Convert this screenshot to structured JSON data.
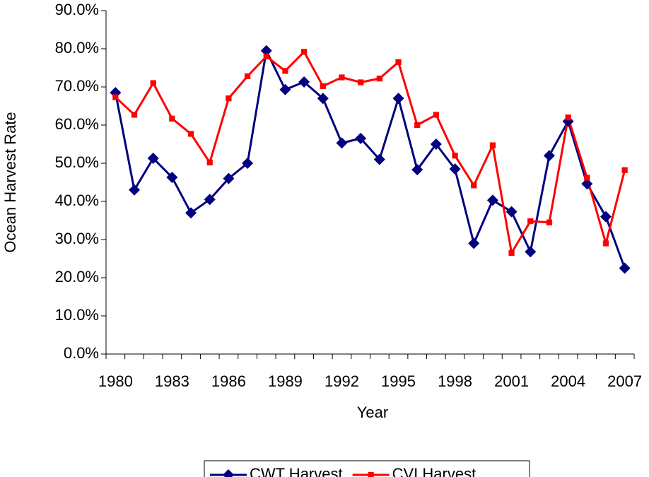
{
  "chart_data": {
    "type": "line",
    "x_label": "Year",
    "y_label": "Ocean Harvest Rate",
    "categories": [
      1980,
      null,
      null,
      1983,
      null,
      null,
      1986,
      null,
      null,
      1989,
      null,
      null,
      1992,
      null,
      null,
      1995,
      null,
      null,
      1998,
      null,
      null,
      2001,
      null,
      null,
      2004,
      null,
      null,
      2007
    ],
    "series": [
      {
        "name": "CWT Harvest",
        "color": "#000080",
        "marker": "diamond",
        "values": [
          68.5,
          43,
          51.3,
          46.3,
          37,
          40.5,
          46,
          50,
          79.5,
          69.3,
          71.3,
          67,
          55.3,
          56.5,
          51,
          67,
          48.3,
          55,
          48.5,
          29,
          40.3,
          37.3,
          26.8,
          52,
          61,
          44.6,
          36,
          22.5
        ]
      },
      {
        "name": "CVI Harvest",
        "color": "#ff0000",
        "marker": "square",
        "values": [
          67.3,
          62.7,
          71,
          61.7,
          57.7,
          50.2,
          67,
          72.8,
          78,
          74.2,
          79.2,
          70.2,
          72.5,
          71.2,
          72.2,
          76.5,
          60,
          62.7,
          52,
          44.2,
          54.7,
          26.5,
          34.8,
          34.5,
          62,
          46.2,
          29,
          48.2
        ]
      }
    ],
    "ylim": [
      0,
      90
    ],
    "yticks": [
      {
        "value": 0,
        "label": "0.0%"
      },
      {
        "value": 10,
        "label": "10.0%"
      },
      {
        "value": 20,
        "label": "20.0%"
      },
      {
        "value": 30,
        "label": "30.0%"
      },
      {
        "value": 40,
        "label": "40.0%"
      },
      {
        "value": 50,
        "label": "50.0%"
      },
      {
        "value": 60,
        "label": "60.0%"
      },
      {
        "value": 70,
        "label": "70.0%"
      },
      {
        "value": 80,
        "label": "80.0%"
      },
      {
        "value": 90,
        "label": "90.0%"
      }
    ],
    "grid": false,
    "legend": "bottom"
  }
}
